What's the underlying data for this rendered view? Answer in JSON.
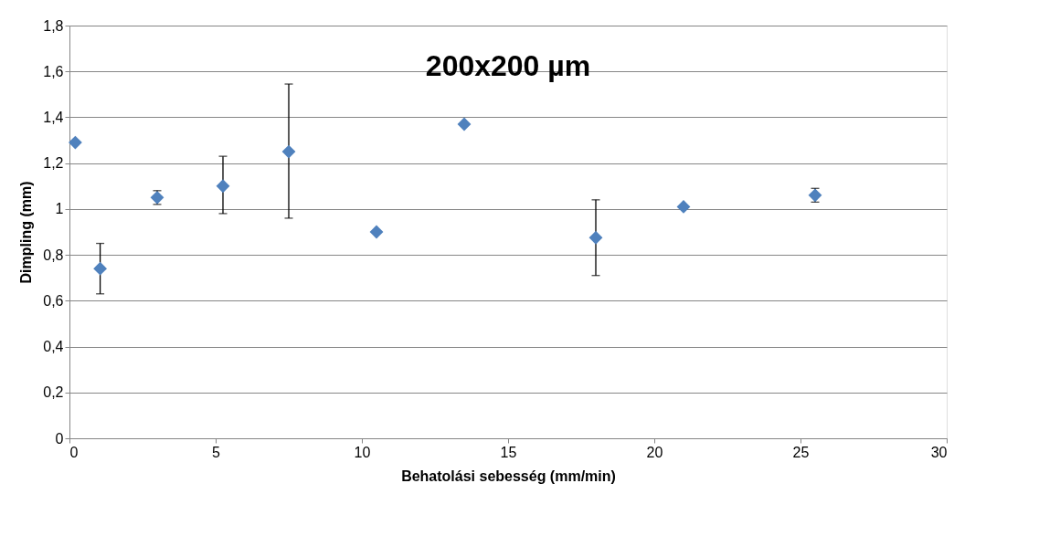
{
  "chart_data": {
    "type": "scatter",
    "title": "200x200 µm",
    "xlabel": "Behatolási sebesség (mm/min)",
    "ylabel": "Dimpling (mm)",
    "x": [
      0.2,
      1.05,
      3.0,
      5.25,
      7.5,
      10.5,
      13.5,
      18.0,
      21.0,
      25.5
    ],
    "series": [
      {
        "color": "#4f81bd",
        "values": [
          1.29,
          0.74,
          1.05,
          1.1,
          1.25,
          0.9,
          1.37,
          0.875,
          1.01,
          1.06
        ],
        "errors": [
          null,
          [
            0.63,
            0.85
          ],
          [
            1.02,
            1.08
          ],
          [
            0.98,
            1.23
          ],
          [
            0.96,
            1.545
          ],
          null,
          null,
          [
            0.71,
            1.04
          ],
          null,
          [
            1.03,
            1.09
          ]
        ]
      }
    ],
    "marker": "diamond",
    "grid": "y",
    "xlim": [
      0,
      30
    ],
    "xticks": [
      0,
      5,
      10,
      15,
      20,
      25,
      30
    ],
    "ylim": [
      0,
      1.8
    ],
    "yticks": [
      0,
      {
        "value": 0.2,
        "label": "0,2"
      },
      {
        "value": 0.4,
        "label": "0,4"
      },
      {
        "value": 0.6,
        "label": "0,6"
      },
      {
        "value": 0.8,
        "label": "0,8"
      },
      1,
      {
        "value": 1.2,
        "label": "1,2"
      },
      {
        "value": 1.4,
        "label": "1,4"
      },
      {
        "value": 1.6,
        "label": "1,6"
      },
      {
        "value": 1.8,
        "label": "1,8"
      }
    ]
  }
}
